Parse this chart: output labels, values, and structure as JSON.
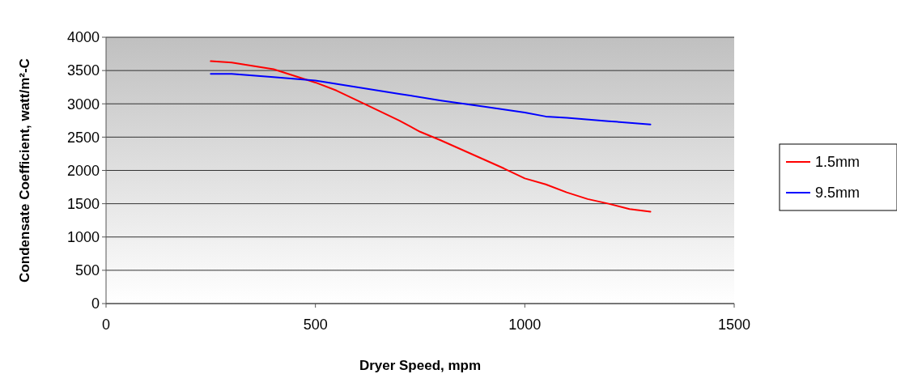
{
  "chart_data": {
    "type": "line",
    "xlabel": "Dryer Speed, mpm",
    "ylabel": "Condensate Coefficient, watt/m²-C",
    "xlim": [
      0,
      1500
    ],
    "xticks": [
      0,
      500,
      1000,
      1500
    ],
    "ylim": [
      0,
      4000
    ],
    "yticks": [
      0,
      500,
      1000,
      1500,
      2000,
      2500,
      3000,
      3500,
      4000
    ],
    "grid": "y",
    "legend": "right",
    "marker": "none",
    "series": [
      {
        "name": "1.5mm",
        "color": "#ff0000",
        "x": [
          250,
          300,
          400,
          500,
          550,
          600,
          700,
          750,
          800,
          900,
          950,
          1000,
          1050,
          1100,
          1150,
          1200,
          1250,
          1300
        ],
        "values": [
          3640,
          3620,
          3520,
          3320,
          3200,
          3050,
          2750,
          2580,
          2450,
          2170,
          2030,
          1880,
          1790,
          1670,
          1570,
          1500,
          1420,
          1380
        ]
      },
      {
        "name": "9.5mm",
        "color": "#0000ff",
        "x": [
          250,
          300,
          400,
          500,
          600,
          700,
          800,
          900,
          1000,
          1050,
          1100,
          1200,
          1300
        ],
        "values": [
          3450,
          3450,
          3400,
          3350,
          3250,
          3150,
          3050,
          2960,
          2870,
          2810,
          2790,
          2740,
          2690
        ]
      }
    ]
  }
}
